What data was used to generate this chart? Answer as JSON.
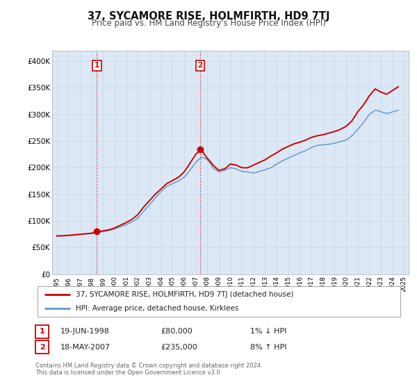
{
  "title": "37, SYCAMORE RISE, HOLMFIRTH, HD9 7TJ",
  "subtitle": "Price paid vs. HM Land Registry's House Price Index (HPI)",
  "background_color": "#ffffff",
  "plot_bg_color": "#dce8f5",
  "grid_color": "#c8d8e8",
  "ylim": [
    0,
    420000
  ],
  "yticks": [
    0,
    50000,
    100000,
    150000,
    200000,
    250000,
    300000,
    350000,
    400000
  ],
  "ytick_labels": [
    "£0",
    "£50K",
    "£100K",
    "£150K",
    "£200K",
    "£250K",
    "£300K",
    "£350K",
    "£400K"
  ],
  "xlim_start": 1994.6,
  "xlim_end": 2025.4,
  "legend_line1": "37, SYCAMORE RISE, HOLMFIRTH, HD9 7TJ (detached house)",
  "legend_line2": "HPI: Average price, detached house, Kirklees",
  "price_color": "#cc0000",
  "hpi_color": "#6699cc",
  "marker_color": "#cc0000",
  "annotation1_label": "1",
  "annotation1_date": "19-JUN-1998",
  "annotation1_price": "£80,000",
  "annotation1_hpi": "1% ↓ HPI",
  "annotation1_year": 1998.46,
  "annotation1_value": 80000,
  "annotation2_label": "2",
  "annotation2_date": "18-MAY-2007",
  "annotation2_price": "£235,000",
  "annotation2_hpi": "8% ↑ HPI",
  "annotation2_year": 2007.38,
  "annotation2_value": 235000,
  "footer_line1": "Contains HM Land Registry data © Crown copyright and database right 2024.",
  "footer_line2": "This data is licensed under the Open Government Licence v3.0.",
  "hpi_data": [
    [
      1995.0,
      72000
    ],
    [
      1995.25,
      72200
    ],
    [
      1995.5,
      72500
    ],
    [
      1995.75,
      72800
    ],
    [
      1996.0,
      73000
    ],
    [
      1996.25,
      73200
    ],
    [
      1996.5,
      73500
    ],
    [
      1996.75,
      73800
    ],
    [
      1997.0,
      74500
    ],
    [
      1997.25,
      75000
    ],
    [
      1997.5,
      75500
    ],
    [
      1997.75,
      76000
    ],
    [
      1998.0,
      76500
    ],
    [
      1998.25,
      77200
    ],
    [
      1998.5,
      78000
    ],
    [
      1998.75,
      79000
    ],
    [
      1999.0,
      80000
    ],
    [
      1999.25,
      81000
    ],
    [
      1999.5,
      82000
    ],
    [
      1999.75,
      83500
    ],
    [
      2000.0,
      85000
    ],
    [
      2000.25,
      87000
    ],
    [
      2000.5,
      89000
    ],
    [
      2000.75,
      91000
    ],
    [
      2001.0,
      93000
    ],
    [
      2001.25,
      95500
    ],
    [
      2001.5,
      98000
    ],
    [
      2001.75,
      101500
    ],
    [
      2002.0,
      105000
    ],
    [
      2002.25,
      111500
    ],
    [
      2002.5,
      118000
    ],
    [
      2002.75,
      124000
    ],
    [
      2003.0,
      130000
    ],
    [
      2003.25,
      136500
    ],
    [
      2003.5,
      143000
    ],
    [
      2003.75,
      149000
    ],
    [
      2004.0,
      155000
    ],
    [
      2004.25,
      160000
    ],
    [
      2004.5,
      165000
    ],
    [
      2004.75,
      167500
    ],
    [
      2005.0,
      170000
    ],
    [
      2005.25,
      172500
    ],
    [
      2005.5,
      175000
    ],
    [
      2005.75,
      178500
    ],
    [
      2006.0,
      182000
    ],
    [
      2006.25,
      188500
    ],
    [
      2006.5,
      195000
    ],
    [
      2006.75,
      202500
    ],
    [
      2007.0,
      210000
    ],
    [
      2007.25,
      215000
    ],
    [
      2007.5,
      220000
    ],
    [
      2007.75,
      218000
    ],
    [
      2008.0,
      215000
    ],
    [
      2008.25,
      208000
    ],
    [
      2008.5,
      200000
    ],
    [
      2008.75,
      196000
    ],
    [
      2009.0,
      192000
    ],
    [
      2009.25,
      193500
    ],
    [
      2009.5,
      195000
    ],
    [
      2009.75,
      197500
    ],
    [
      2010.0,
      200000
    ],
    [
      2010.25,
      199000
    ],
    [
      2010.5,
      198000
    ],
    [
      2010.75,
      195500
    ],
    [
      2011.0,
      193000
    ],
    [
      2011.25,
      192500
    ],
    [
      2011.5,
      192000
    ],
    [
      2011.75,
      191000
    ],
    [
      2012.0,
      190000
    ],
    [
      2012.25,
      191500
    ],
    [
      2012.5,
      193000
    ],
    [
      2012.75,
      194500
    ],
    [
      2013.0,
      196000
    ],
    [
      2013.25,
      198000
    ],
    [
      2013.5,
      200000
    ],
    [
      2013.75,
      203500
    ],
    [
      2014.0,
      207000
    ],
    [
      2014.25,
      210000
    ],
    [
      2014.5,
      213000
    ],
    [
      2014.75,
      215500
    ],
    [
      2015.0,
      218000
    ],
    [
      2015.25,
      220500
    ],
    [
      2015.5,
      223000
    ],
    [
      2015.75,
      225500
    ],
    [
      2016.0,
      228000
    ],
    [
      2016.25,
      230000
    ],
    [
      2016.5,
      232000
    ],
    [
      2016.75,
      235000
    ],
    [
      2017.0,
      238000
    ],
    [
      2017.25,
      240000
    ],
    [
      2017.5,
      242000
    ],
    [
      2017.75,
      242500
    ],
    [
      2018.0,
      243000
    ],
    [
      2018.25,
      243500
    ],
    [
      2018.5,
      244000
    ],
    [
      2018.75,
      245000
    ],
    [
      2019.0,
      246000
    ],
    [
      2019.25,
      247500
    ],
    [
      2019.5,
      249000
    ],
    [
      2019.75,
      250500
    ],
    [
      2020.0,
      252000
    ],
    [
      2020.25,
      256000
    ],
    [
      2020.5,
      260000
    ],
    [
      2020.75,
      266000
    ],
    [
      2021.0,
      272000
    ],
    [
      2021.25,
      278500
    ],
    [
      2021.5,
      285000
    ],
    [
      2021.75,
      292500
    ],
    [
      2022.0,
      300000
    ],
    [
      2022.25,
      304000
    ],
    [
      2022.5,
      308000
    ],
    [
      2022.75,
      307000
    ],
    [
      2023.0,
      305000
    ],
    [
      2023.25,
      303500
    ],
    [
      2023.5,
      302000
    ],
    [
      2023.75,
      303000
    ],
    [
      2024.0,
      305000
    ],
    [
      2024.25,
      306500
    ],
    [
      2024.5,
      308000
    ]
  ],
  "price_data": [
    [
      1995.0,
      72000
    ],
    [
      1995.25,
      72000
    ],
    [
      1995.5,
      72300
    ],
    [
      1995.75,
      72500
    ],
    [
      1996.0,
      73000
    ],
    [
      1996.25,
      73500
    ],
    [
      1996.5,
      74000
    ],
    [
      1996.75,
      74500
    ],
    [
      1997.0,
      75000
    ],
    [
      1997.25,
      75500
    ],
    [
      1997.5,
      76000
    ],
    [
      1997.75,
      76500
    ],
    [
      1998.0,
      77000
    ],
    [
      1998.25,
      78500
    ],
    [
      1998.46,
      80000
    ],
    [
      1998.75,
      80500
    ],
    [
      1999.0,
      81500
    ],
    [
      1999.25,
      82500
    ],
    [
      1999.5,
      83500
    ],
    [
      1999.75,
      85000
    ],
    [
      2000.0,
      87000
    ],
    [
      2000.25,
      89500
    ],
    [
      2000.5,
      92000
    ],
    [
      2000.75,
      94500
    ],
    [
      2001.0,
      97000
    ],
    [
      2001.25,
      100000
    ],
    [
      2001.5,
      103000
    ],
    [
      2001.75,
      107500
    ],
    [
      2002.0,
      112000
    ],
    [
      2002.25,
      119000
    ],
    [
      2002.5,
      126000
    ],
    [
      2002.75,
      132000
    ],
    [
      2003.0,
      138000
    ],
    [
      2003.25,
      144000
    ],
    [
      2003.5,
      150000
    ],
    [
      2003.75,
      155000
    ],
    [
      2004.0,
      160000
    ],
    [
      2004.25,
      165000
    ],
    [
      2004.5,
      170000
    ],
    [
      2004.75,
      173000
    ],
    [
      2005.0,
      176000
    ],
    [
      2005.25,
      179000
    ],
    [
      2005.5,
      182000
    ],
    [
      2005.75,
      187000
    ],
    [
      2006.0,
      192000
    ],
    [
      2006.25,
      200000
    ],
    [
      2006.5,
      208000
    ],
    [
      2006.75,
      216500
    ],
    [
      2007.0,
      225000
    ],
    [
      2007.25,
      230000
    ],
    [
      2007.38,
      235000
    ],
    [
      2007.6,
      231000
    ],
    [
      2007.75,
      225000
    ],
    [
      2008.0,
      218000
    ],
    [
      2008.25,
      212000
    ],
    [
      2008.5,
      205000
    ],
    [
      2008.75,
      200000
    ],
    [
      2009.0,
      195000
    ],
    [
      2009.25,
      196500
    ],
    [
      2009.5,
      198000
    ],
    [
      2009.75,
      202000
    ],
    [
      2010.0,
      207000
    ],
    [
      2010.25,
      206000
    ],
    [
      2010.5,
      205000
    ],
    [
      2010.75,
      202500
    ],
    [
      2011.0,
      200000
    ],
    [
      2011.25,
      200000
    ],
    [
      2011.5,
      200000
    ],
    [
      2011.75,
      202500
    ],
    [
      2012.0,
      205000
    ],
    [
      2012.25,
      207500
    ],
    [
      2012.5,
      210000
    ],
    [
      2012.75,
      212500
    ],
    [
      2013.0,
      215000
    ],
    [
      2013.25,
      218500
    ],
    [
      2013.5,
      222000
    ],
    [
      2013.75,
      225000
    ],
    [
      2014.0,
      228000
    ],
    [
      2014.25,
      231500
    ],
    [
      2014.5,
      235000
    ],
    [
      2014.75,
      237500
    ],
    [
      2015.0,
      240000
    ],
    [
      2015.25,
      242500
    ],
    [
      2015.5,
      245000
    ],
    [
      2015.75,
      246500
    ],
    [
      2016.0,
      248000
    ],
    [
      2016.25,
      250000
    ],
    [
      2016.5,
      252000
    ],
    [
      2016.75,
      254500
    ],
    [
      2017.0,
      257000
    ],
    [
      2017.25,
      258500
    ],
    [
      2017.5,
      260000
    ],
    [
      2017.75,
      261000
    ],
    [
      2018.0,
      262000
    ],
    [
      2018.25,
      263500
    ],
    [
      2018.5,
      265000
    ],
    [
      2018.75,
      266500
    ],
    [
      2019.0,
      268000
    ],
    [
      2019.25,
      270000
    ],
    [
      2019.5,
      272000
    ],
    [
      2019.75,
      275000
    ],
    [
      2020.0,
      278000
    ],
    [
      2020.25,
      283000
    ],
    [
      2020.5,
      288000
    ],
    [
      2020.75,
      296500
    ],
    [
      2021.0,
      305000
    ],
    [
      2021.25,
      311500
    ],
    [
      2021.5,
      318000
    ],
    [
      2021.75,
      326500
    ],
    [
      2022.0,
      335000
    ],
    [
      2022.25,
      341500
    ],
    [
      2022.5,
      348000
    ],
    [
      2022.75,
      345000
    ],
    [
      2023.0,
      342000
    ],
    [
      2023.25,
      340000
    ],
    [
      2023.5,
      338000
    ],
    [
      2023.75,
      341500
    ],
    [
      2024.0,
      345000
    ],
    [
      2024.25,
      348500
    ],
    [
      2024.5,
      352000
    ]
  ]
}
